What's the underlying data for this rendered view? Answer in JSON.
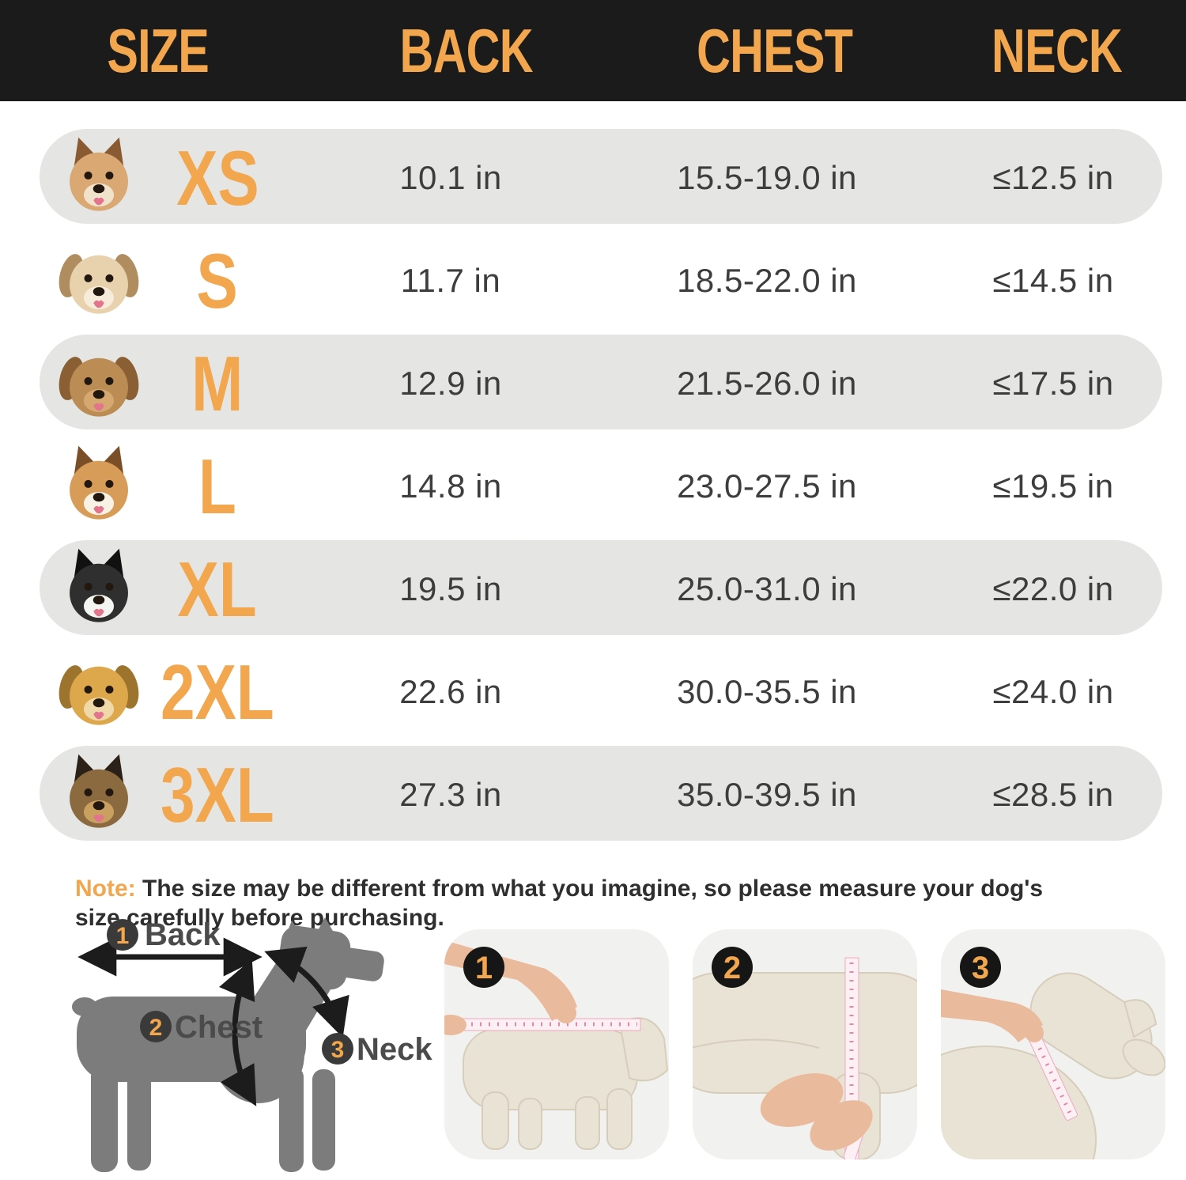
{
  "page": {
    "background": "#ffffff"
  },
  "header": {
    "background": "#1b1b1b",
    "text_color": "#f2a64d",
    "columns": [
      "SIZE",
      "BACK",
      "CHEST",
      "NECK"
    ]
  },
  "table": {
    "row_shaded_color": "#e5e5e4",
    "value_color": "#3d3d3d",
    "size_color": "#f2a64d",
    "rows": [
      {
        "size": "XS",
        "back": "10.1 in",
        "chest": "15.5-19.0 in",
        "neck": "≤12.5 in",
        "shaded": true,
        "dog": {
          "icon": "chihuahua-photo",
          "ears": "up",
          "fur": "#d9a873",
          "fur2": "#f1e2cc",
          "accent": "#8a5a33"
        }
      },
      {
        "size": "S",
        "back": "11.7 in",
        "chest": "18.5-22.0 in",
        "neck": "≤14.5 in",
        "shaded": false,
        "dog": {
          "icon": "havanese-photo",
          "ears": "floppy",
          "fur": "#e8d2ae",
          "fur2": "#f6ecd9",
          "accent": "#b08d5f"
        }
      },
      {
        "size": "M",
        "back": "12.9 in",
        "chest": "21.5-26.0 in",
        "neck": "≤17.5 in",
        "shaded": true,
        "dog": {
          "icon": "poodle-photo",
          "ears": "floppy",
          "fur": "#bc8c55",
          "fur2": "#d4a86f",
          "accent": "#8a5f33"
        }
      },
      {
        "size": "L",
        "back": "14.8 in",
        "chest": "23.0-27.5 in",
        "neck": "≤19.5 in",
        "shaded": false,
        "dog": {
          "icon": "corgi-photo",
          "ears": "up",
          "fur": "#d69c58",
          "fur2": "#f7f1e6",
          "accent": "#7a4f28"
        }
      },
      {
        "size": "XL",
        "back": "19.5 in",
        "chest": "25.0-31.0 in",
        "neck": "≤22.0 in",
        "shaded": true,
        "dog": {
          "icon": "border-collie-photo",
          "ears": "up",
          "fur": "#2f2f2f",
          "fur2": "#f4f4f2",
          "accent": "#111111"
        }
      },
      {
        "size": "2XL",
        "back": "22.6 in",
        "chest": "30.0-35.5 in",
        "neck": "≤24.0 in",
        "shaded": false,
        "dog": {
          "icon": "golden-retriever-photo",
          "ears": "floppy",
          "fur": "#dda74c",
          "fur2": "#f0d9a8",
          "accent": "#9c742e"
        }
      },
      {
        "size": "3XL",
        "back": "27.3 in",
        "chest": "35.0-39.5 in",
        "neck": "≤28.5 in",
        "shaded": true,
        "dog": {
          "icon": "german-shepherd-photo",
          "ears": "up",
          "fur": "#8a6a3e",
          "fur2": "#c9a060",
          "accent": "#2b2118"
        }
      }
    ]
  },
  "note": {
    "label": "Note:",
    "label_color": "#f2a64d",
    "text": " The size may be different from what you imagine, so please measure your dog's size carefully before purchasing."
  },
  "diagram": {
    "silhouette_color": "#7c7c7c",
    "badge_color": "#3a3a3a",
    "badge_number_color": "#f2a64d",
    "label_color": "#4b4b4b",
    "labels": [
      {
        "num": "1",
        "text": "Back"
      },
      {
        "num": "2",
        "text": "Chest"
      },
      {
        "num": "3",
        "text": "Neck"
      }
    ]
  },
  "steps": {
    "card_background": "#f1f1ef",
    "badge_color": "#161616",
    "badge_number_color": "#f2a64d",
    "items": [
      {
        "num": "1",
        "icon": "measure-back-photo"
      },
      {
        "num": "2",
        "icon": "measure-chest-photo"
      },
      {
        "num": "3",
        "icon": "measure-neck-photo"
      }
    ]
  }
}
